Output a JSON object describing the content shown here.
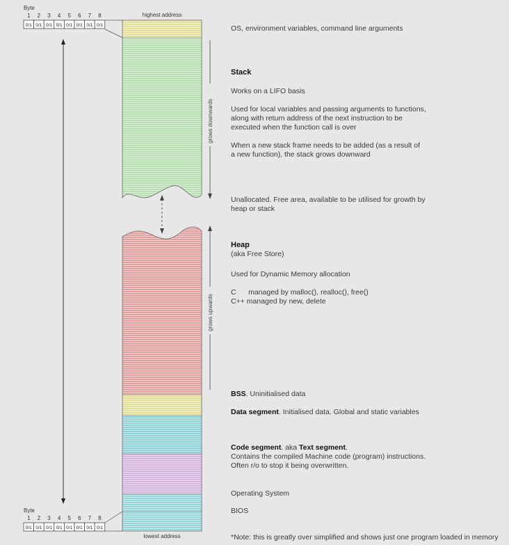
{
  "byte_label": "Byte",
  "bit_numbers": [
    "1",
    "2",
    "3",
    "4",
    "5",
    "6",
    "7",
    "8"
  ],
  "bit_value": "0/1",
  "highest_address": "highest address",
  "lowest_address": "lowest address",
  "grows_downwards": "grows downwards",
  "grows_upwards": "grows upwards",
  "colors": {
    "os_env": "#e3df9a",
    "stack": "#b6dfb0",
    "heap": "#e0a09f",
    "bss": "#e3df9a",
    "data": "#8fd3d8",
    "code": "#d5b4dd",
    "os": "#96d5da",
    "bios": "#96d5da",
    "line": "#ffffff"
  },
  "annotations": {
    "os_env": "OS, environment variables, command line arguments",
    "stack_title": "Stack",
    "stack_lifo": "Works on a LIFO basis",
    "stack_desc1": "Used for local variables and passing arguments to functions,",
    "stack_desc2": "along with return address of the next instruction to be",
    "stack_desc3": "executed when the function call is over",
    "stack_grow1": "When a new stack frame needs to be added (as a result of",
    "stack_grow2": "a new function), the stack grows downward",
    "unalloc1": "Unallocated. Free area, available to be utilised for growth by",
    "unalloc2": "heap or stack",
    "heap_title": "Heap",
    "heap_aka": "(aka Free Store)",
    "heap_use": "Used for Dynamic Memory allocation",
    "heap_c": "C      managed by malloc(), realloc(), free()",
    "heap_cpp": "C++ managed by new, delete",
    "bss_title": "BSS",
    "bss_desc": ". Uninitialised data",
    "data_title": "Data segment",
    "data_desc": ". Initialised data. Global and static variables",
    "code_title": "Code segment",
    "code_mid": ". aka ",
    "code_title2": "Text segment",
    "code_end": ".",
    "code_desc1": "Contains the compiled Machine code (program) instructions.",
    "code_desc2": "Often r/o to stop it being overwritten.",
    "os": "Operating System",
    "bios": "BIOS",
    "note": "*Note: this is greatly over simplified and shows just one program loaded in memory"
  }
}
